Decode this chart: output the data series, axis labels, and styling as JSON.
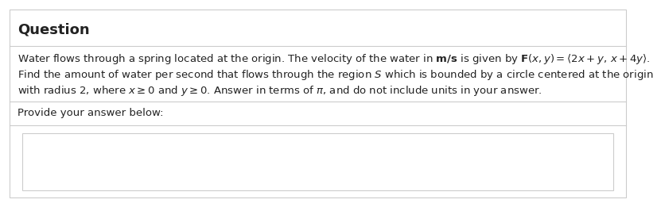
{
  "title": "Question",
  "title_fontsize": 13,
  "title_fontweight": "bold",
  "line1": "Water flows through a spring located at the origin. The velocity of the water in $\\mathbf{m/s}$ is given by $\\mathbf{F}(x, y) = \\langle 2x + y,\\, x + 4y\\rangle$.",
  "line2": "Find the amount of water per second that flows through the region $S$ which is bounded by a circle centered at the origin",
  "line3": "with radius 2, where $x \\geq 0$ and $y \\geq 0$. Answer in terms of $\\pi$, and do not include units in your answer.",
  "prompt_text": "Provide your answer below:",
  "bg_color": "#ffffff",
  "text_color": "#222222",
  "border_color": "#cccccc",
  "font_size": 9.5
}
